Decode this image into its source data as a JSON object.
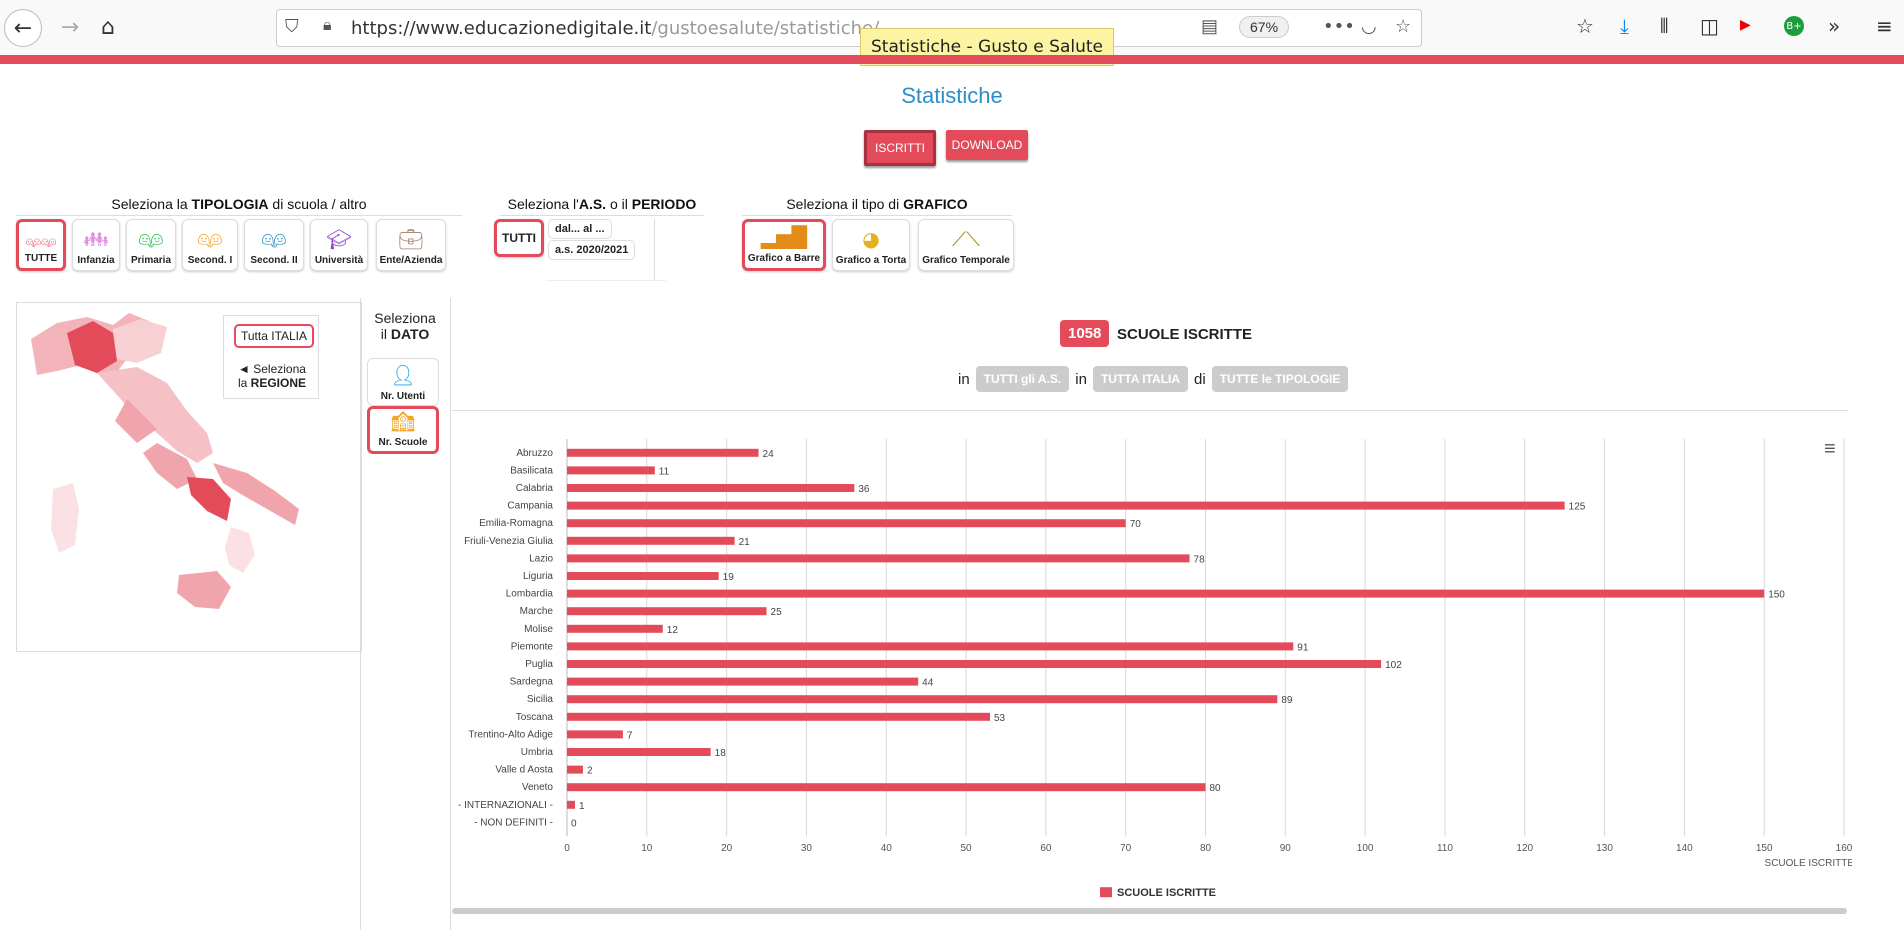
{
  "browser": {
    "url_host": "https://www.educazionedigitale.it",
    "url_path": "/gustoesalute/statistiche/",
    "zoom": "67%",
    "tooltip": "Statistiche - Gusto e Salute"
  },
  "page": {
    "title": "Statistiche",
    "btn_iscritti": "ISCRITTI",
    "btn_download": "DOWNLOAD"
  },
  "tipologia": {
    "title_pre": "Seleziona la ",
    "title_bold": "TIPOLOGIA",
    "title_post": " di scuola / altro",
    "items": [
      "TUTTE",
      "Infanzia",
      "Primaria",
      "Second. I",
      "Second. II",
      "Università",
      "Ente/Azienda"
    ]
  },
  "periodo": {
    "title_pre": "Seleziona l'",
    "title_bold1": "A.S.",
    "title_mid": " o il ",
    "title_bold2": "PERIODO",
    "tutti": "TUTTI",
    "range": "dal... al ...",
    "year": "a.s. 2020/2021"
  },
  "grafico": {
    "title_pre": "Seleziona il tipo di ",
    "title_bold": "GRAFICO",
    "items": [
      "Grafico a Barre",
      "Grafico a Torta",
      "Grafico Temporale"
    ]
  },
  "map": {
    "italy_btn": "Tutta ITALIA",
    "hint_pre": "◄ Seleziona",
    "hint_la": "la ",
    "hint_bold": "REGIONE"
  },
  "dato": {
    "title1": "Seleziona",
    "title2_pre": "il ",
    "title2_bold": "DATO",
    "utenti": "Nr. Utenti",
    "scuole": "Nr. Scuole"
  },
  "summary": {
    "count": "1058",
    "label": "SCUOLE ISCRITTE",
    "in1": "in",
    "chip1": "TUTTI gli A.S.",
    "in2": "in",
    "chip2": "TUTTA ITALIA",
    "di": "di",
    "chip3": "TUTTE le TIPOLOGIE"
  },
  "colors": {
    "accent": "#e34b5b",
    "link": "#2a8fc9"
  },
  "chart_data": {
    "type": "bar",
    "orientation": "horizontal",
    "categories": [
      "Abruzzo",
      "Basilicata",
      "Calabria",
      "Campania",
      "Emilia-Romagna",
      "Friuli-Venezia Giulia",
      "Lazio",
      "Liguria",
      "Lombardia",
      "Marche",
      "Molise",
      "Piemonte",
      "Puglia",
      "Sardegna",
      "Sicilia",
      "Toscana",
      "Trentino-Alto Adige",
      "Umbria",
      "Valle d Aosta",
      "Veneto",
      "- INTERNAZIONALI -",
      "- NON DEFINITI -"
    ],
    "series": [
      {
        "name": "SCUOLE ISCRITTE",
        "values": [
          24,
          11,
          36,
          125,
          70,
          21,
          78,
          19,
          150,
          25,
          12,
          91,
          102,
          44,
          89,
          53,
          7,
          18,
          2,
          80,
          1,
          0
        ]
      }
    ],
    "xlabel": "SCUOLE ISCRITTE",
    "xlim": [
      0,
      160
    ],
    "xticks": [
      0,
      10,
      20,
      30,
      40,
      50,
      60,
      70,
      80,
      90,
      100,
      110,
      120,
      130,
      140,
      150,
      160
    ],
    "grid": true,
    "legend": "bottom-center",
    "color": "#e34b5b"
  }
}
